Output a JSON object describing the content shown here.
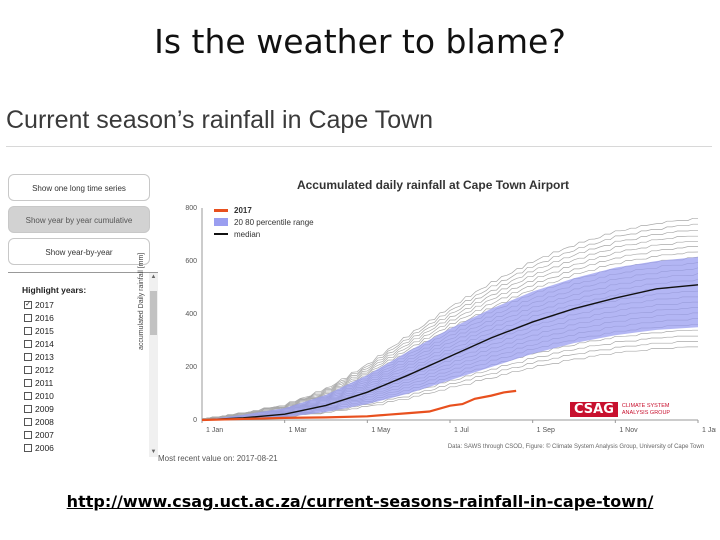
{
  "slide": {
    "title": "Is the weather to blame?",
    "heading": "Current season’s rainfall in Cape Town",
    "url": "http://www.csag.uct.ac.za/current-seasons-rainfall-in-cape-town/"
  },
  "controls": {
    "buttons": [
      {
        "label": "Show one long time series",
        "active": false
      },
      {
        "label": "Show year by year cumulative",
        "active": true
      },
      {
        "label": "Show year-by-year",
        "active": false
      }
    ],
    "highlight_title": "Highlight years:",
    "years": [
      {
        "label": "2017",
        "checked": true
      },
      {
        "label": "2016",
        "checked": false
      },
      {
        "label": "2015",
        "checked": false
      },
      {
        "label": "2014",
        "checked": false
      },
      {
        "label": "2013",
        "checked": false
      },
      {
        "label": "2012",
        "checked": false
      },
      {
        "label": "2011",
        "checked": false
      },
      {
        "label": "2010",
        "checked": false
      },
      {
        "label": "2009",
        "checked": false
      },
      {
        "label": "2008",
        "checked": false
      },
      {
        "label": "2007",
        "checked": false
      },
      {
        "label": "2006",
        "checked": false
      }
    ]
  },
  "chart_data": {
    "type": "line",
    "title": "Accumulated daily rainfall at Cape Town Airport",
    "ylabel": "accumulated Daily rainfall [mm]",
    "xlabel": "",
    "ylim": [
      0,
      800
    ],
    "xlim": [
      "Jan 1",
      "Jan 1"
    ],
    "yticks": [
      0,
      200,
      400,
      600,
      800
    ],
    "xticks": [
      {
        "label": "1 Jan",
        "month": 0
      },
      {
        "label": "1 Mar",
        "month": 2
      },
      {
        "label": "1 May",
        "month": 4
      },
      {
        "label": "1 Jul",
        "month": 6
      },
      {
        "label": "1 Sep",
        "month": 8
      },
      {
        "label": "1 Nov",
        "month": 10
      },
      {
        "label": "1 Jan",
        "month": 12
      }
    ],
    "grid": false,
    "legend": "top-left",
    "legend_entries": [
      "2017",
      "20  80 percentile range",
      "median"
    ],
    "colors": {
      "year2017": "#e8501e",
      "band": "#9a9ef0",
      "median": "#111111",
      "history": "#a9a9a9"
    },
    "series": [
      {
        "name": "2017",
        "x": [
          0,
          1,
          2,
          3,
          4,
          4.5,
          5,
          5.5,
          6,
          6.3,
          6.6,
          7,
          7.3,
          7.6
        ],
        "y": [
          0,
          4,
          8,
          10,
          14,
          20,
          26,
          32,
          54,
          60,
          80,
          92,
          104,
          110
        ]
      },
      {
        "name": "median",
        "x": [
          0,
          1,
          2,
          3,
          4,
          5,
          6,
          7,
          8,
          9,
          10,
          11,
          12
        ],
        "y": [
          0,
          8,
          22,
          55,
          105,
          170,
          240,
          310,
          370,
          420,
          460,
          495,
          510
        ]
      },
      {
        "name": "20  80 percentile range",
        "x": [
          0,
          1,
          2,
          3,
          4,
          5,
          6,
          7,
          8,
          9,
          10,
          11,
          12
        ],
        "low": [
          0,
          3,
          10,
          30,
          60,
          100,
          150,
          200,
          250,
          290,
          320,
          340,
          350
        ],
        "high": [
          0,
          20,
          45,
          95,
          170,
          260,
          345,
          420,
          485,
          535,
          575,
          600,
          615
        ]
      }
    ],
    "history_count": 24
  },
  "notes": {
    "source": "Data: SAWS through CSOD, Figure: © Climate System Analysis Group, University of Cape Town",
    "recent": "Most recent value on: 2017-08-21",
    "logo_mark": "CSAG",
    "logo_sub": "CLIMATE SYSTEM ANALYSIS GROUP"
  }
}
